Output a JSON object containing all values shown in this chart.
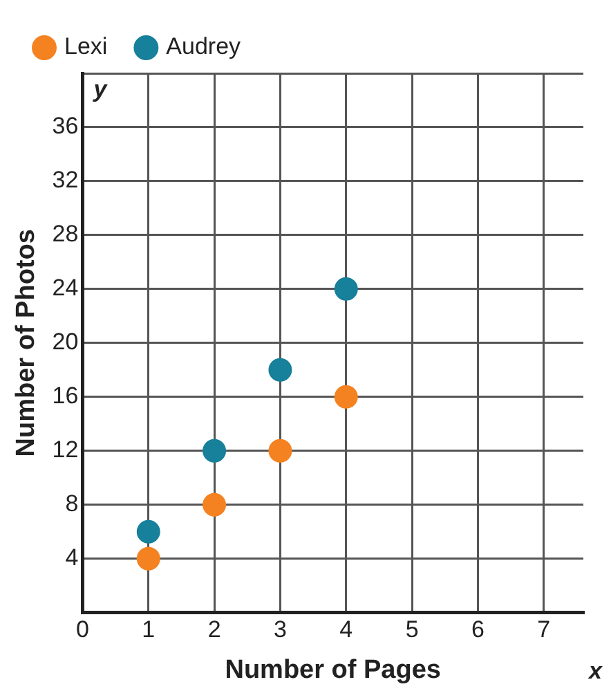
{
  "chart_data": {
    "type": "scatter",
    "xlabel": "Number of Pages",
    "ylabel": "Number of Photos",
    "annotations": [
      "x",
      "y"
    ],
    "x": [
      1,
      2,
      3,
      4
    ],
    "series": [
      {
        "name": "Lexi",
        "color": "#f58220",
        "values": [
          4,
          8,
          12,
          16
        ]
      },
      {
        "name": "Audrey",
        "color": "#17809a",
        "values": [
          6,
          12,
          18,
          24
        ]
      }
    ],
    "xlim": [
      0,
      7.6
    ],
    "xticks": [
      0,
      1,
      2,
      3,
      4,
      5,
      6,
      7
    ],
    "ylim": [
      0,
      40
    ],
    "yticks": [
      {
        "value": 0,
        "label": null
      },
      4,
      8,
      12,
      16,
      20,
      24,
      28,
      32,
      36,
      {
        "value": 40,
        "label": null
      }
    ],
    "grid": true,
    "legend": "top left",
    "marker": "circle"
  }
}
